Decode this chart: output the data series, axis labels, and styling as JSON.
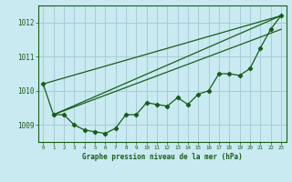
{
  "title": "Graphe pression niveau de la mer (hPa)",
  "background_color": "#c8eaf0",
  "grid_color": "#a8ccd8",
  "line_color": "#1a5c1a",
  "xlim": [
    -0.5,
    23.5
  ],
  "ylim": [
    1008.5,
    1012.5
  ],
  "yticks": [
    1009,
    1010,
    1011,
    1012
  ],
  "xticks": [
    0,
    1,
    2,
    3,
    4,
    5,
    6,
    7,
    8,
    9,
    10,
    11,
    12,
    13,
    14,
    15,
    16,
    17,
    18,
    19,
    20,
    21,
    22,
    23
  ],
  "series1_x": [
    0,
    1,
    2,
    3,
    4,
    5,
    6,
    7,
    8,
    9,
    10,
    11,
    12,
    13,
    14,
    15,
    16,
    17,
    18,
    19,
    20,
    21,
    22,
    23
  ],
  "series1_y": [
    1010.2,
    1009.3,
    1009.3,
    1009.0,
    1008.85,
    1008.8,
    1008.75,
    1008.9,
    1009.3,
    1009.3,
    1009.65,
    1009.6,
    1009.55,
    1009.8,
    1009.6,
    1009.9,
    1010.0,
    1010.5,
    1010.5,
    1010.45,
    1010.65,
    1011.25,
    1011.8,
    1012.2
  ],
  "line2_x": [
    0,
    23
  ],
  "line2_y": [
    1010.2,
    1012.2
  ],
  "line3_x": [
    1,
    23
  ],
  "line3_y": [
    1009.3,
    1012.2
  ],
  "line4_x": [
    1,
    23
  ],
  "line4_y": [
    1009.3,
    1011.8
  ],
  "xlabel_fontsize": 5.5,
  "ytick_fontsize": 5.5,
  "xtick_fontsize": 4.2
}
